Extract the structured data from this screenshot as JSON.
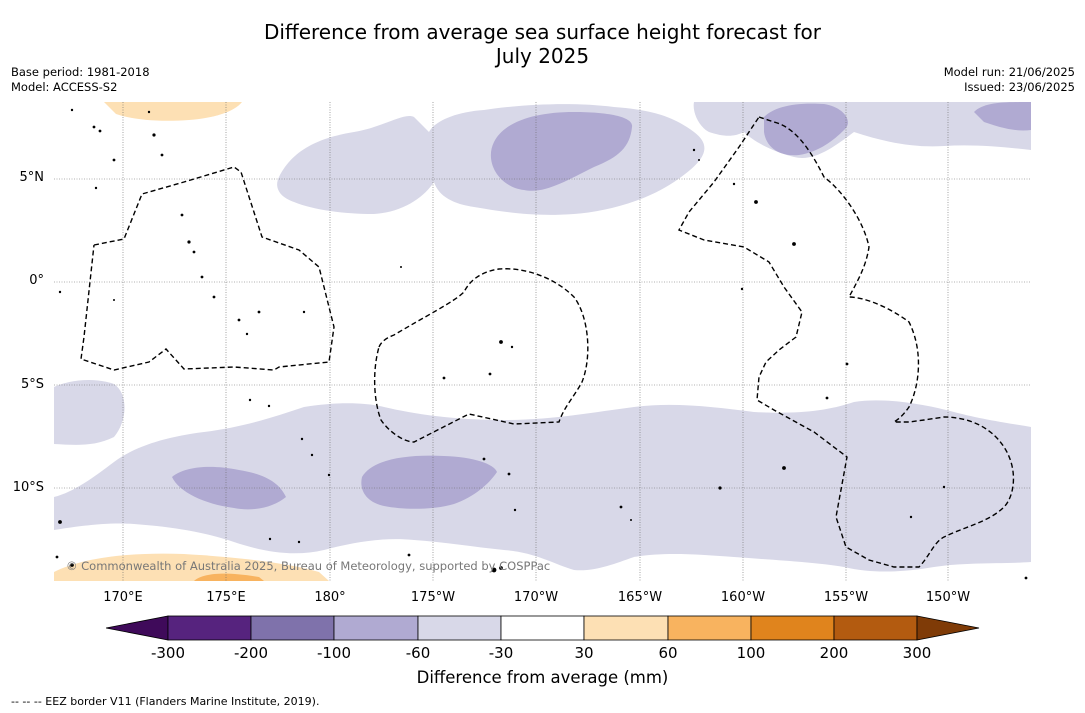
{
  "header": {
    "title_line1": "Difference from average sea surface height forecast for",
    "title_line2": "July 2025"
  },
  "meta": {
    "base_period": "Base period: 1981-2018",
    "model": "Model: ACCESS-S2",
    "model_run": "Model run: 21/06/2025",
    "issued": "Issued: 23/06/2025"
  },
  "map": {
    "lat_labels": [
      "5°N",
      "0°",
      "5°S",
      "10°S"
    ],
    "lon_labels": [
      "170°E",
      "175°E",
      "180°",
      "175°W",
      "170°W",
      "165°W",
      "160°W",
      "155°W",
      "150°W"
    ],
    "copyright": "© Commonwealth of Australia 2025, Bureau of Meteorology, supported by COSPPac",
    "colors": {
      "neg_60_30": "#d8d8e8",
      "neg_100_60": "#b0aad2",
      "pos_30_60": "#fde0b4",
      "pos_60_100": "#f8b35f"
    }
  },
  "colorbar": {
    "ticks": [
      "-300",
      "-200",
      "-100",
      "-60",
      "-30",
      "30",
      "60",
      "100",
      "200",
      "300"
    ],
    "colors": [
      "#3f0a5a",
      "#56237e",
      "#7f72ab",
      "#b0aad2",
      "#d8d8e8",
      "#ffffff",
      "#fde0b4",
      "#f8b35f",
      "#e0841d",
      "#b35b10",
      "#7f3b07"
    ],
    "label": "Difference from average (mm)"
  },
  "footnote": "-- -- -- EEZ border V11 (Flanders Marine Institute, 2019)."
}
